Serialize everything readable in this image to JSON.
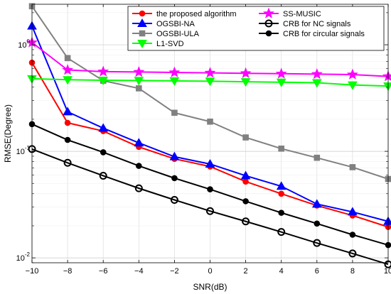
{
  "chart_data": {
    "type": "line",
    "title": "",
    "xlabel": "SNR(dB)",
    "ylabel": "RMSE(Degree)",
    "yscale": "log",
    "xlim": [
      -10,
      10
    ],
    "ylim": [
      0.009,
      2.4
    ],
    "grid": true,
    "legend_position": "top-right",
    "x": [
      -10,
      -8,
      -6,
      -4,
      -2,
      0,
      2,
      4,
      6,
      8,
      10
    ],
    "x_ticks": [
      -10,
      -8,
      -6,
      -4,
      -2,
      0,
      2,
      4,
      6,
      8,
      10
    ],
    "x_tick_labels": [
      "−10",
      "−8",
      "−6",
      "−4",
      "−2",
      "0",
      "2",
      "4",
      "6",
      "8",
      "10"
    ],
    "y_ticks": [
      0.01,
      0.1,
      1
    ],
    "y_tick_labels": [
      {
        "base": "10",
        "exp": "-2"
      },
      {
        "base": "10",
        "exp": "-1"
      },
      {
        "base": "10",
        "exp": "0"
      }
    ],
    "series": [
      {
        "name": "the proposed algorithm",
        "color": "#ff0000",
        "marker": "circle-filled",
        "values": [
          0.68,
          0.185,
          0.155,
          0.11,
          0.085,
          0.072,
          0.052,
          0.04,
          0.031,
          0.025,
          0.0195
        ]
      },
      {
        "name": "OGSBI-NA",
        "color": "#0000ff",
        "marker": "triangle-up",
        "values": [
          1.5,
          0.235,
          0.165,
          0.12,
          0.089,
          0.076,
          0.059,
          0.047,
          0.032,
          0.027,
          0.022
        ]
      },
      {
        "name": "OGSBI-ULA",
        "color": "#808080",
        "marker": "square",
        "values": [
          2.3,
          0.75,
          0.46,
          0.39,
          0.23,
          0.19,
          0.135,
          0.106,
          0.087,
          0.071,
          0.055
        ]
      },
      {
        "name": "L1-SVD",
        "color": "#00ff00",
        "marker": "triangle-down",
        "values": [
          0.48,
          0.47,
          0.465,
          0.462,
          0.458,
          0.455,
          0.45,
          0.445,
          0.44,
          0.42,
          0.41
        ]
      },
      {
        "name": "SS-MUSIC",
        "color": "#ff00ff",
        "marker": "star",
        "values": [
          1.05,
          0.58,
          0.56,
          0.555,
          0.55,
          0.545,
          0.54,
          0.535,
          0.53,
          0.525,
          0.505
        ]
      },
      {
        "name": "CRB for NC signals",
        "color": "#000000",
        "marker": "circle-open",
        "values": [
          0.105,
          0.078,
          0.059,
          0.045,
          0.035,
          0.0275,
          0.022,
          0.0175,
          0.0138,
          0.011,
          0.0087
        ]
      },
      {
        "name": "CRB for circular signals",
        "color": "#000000",
        "marker": "circle-filled",
        "values": [
          0.18,
          0.128,
          0.098,
          0.073,
          0.056,
          0.044,
          0.034,
          0.0265,
          0.021,
          0.0165,
          0.0132
        ]
      }
    ]
  }
}
